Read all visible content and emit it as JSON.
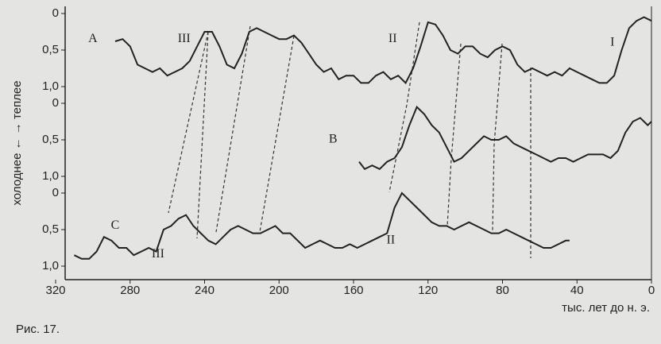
{
  "chart_data": [
    {
      "type": "line",
      "color": "#222",
      "x": [
        288,
        284,
        280,
        276,
        272,
        268,
        264,
        260,
        256,
        252,
        248,
        244,
        240,
        236,
        232,
        228,
        224,
        220,
        216,
        212,
        208,
        204,
        200,
        196,
        192,
        188,
        184,
        180,
        176,
        172,
        168,
        164,
        160,
        156,
        152,
        148,
        144,
        140,
        136,
        132,
        128,
        124,
        120,
        116,
        112,
        108,
        104,
        100,
        96,
        92,
        88,
        84,
        80,
        76,
        72,
        68,
        64,
        60,
        56,
        52,
        48,
        44,
        40,
        36,
        32,
        28,
        24,
        20,
        16,
        12,
        8,
        4,
        0
      ],
      "values": [
        0.38,
        0.35,
        0.45,
        0.7,
        0.75,
        0.8,
        0.75,
        0.85,
        0.8,
        0.75,
        0.65,
        0.45,
        0.25,
        0.25,
        0.45,
        0.7,
        0.75,
        0.55,
        0.25,
        0.2,
        0.25,
        0.3,
        0.35,
        0.35,
        0.3,
        0.4,
        0.55,
        0.7,
        0.8,
        0.75,
        0.9,
        0.85,
        0.85,
        0.95,
        0.95,
        0.85,
        0.8,
        0.9,
        0.85,
        0.95,
        0.75,
        0.45,
        0.12,
        0.15,
        0.3,
        0.5,
        0.55,
        0.45,
        0.45,
        0.55,
        0.6,
        0.5,
        0.45,
        0.5,
        0.7,
        0.8,
        0.75,
        0.8,
        0.85,
        0.8,
        0.85,
        0.75,
        0.8,
        0.85,
        0.9,
        0.95,
        0.95,
        0.85,
        0.5,
        0.2,
        0.1,
        0.05,
        0.1
      ],
      "xlim": [
        320,
        0
      ],
      "ylim": [
        0,
        1
      ],
      "yticks": [
        0,
        {
          "value": 0.5,
          "label": "0,5"
        },
        {
          "value": 1,
          "label": "1,0"
        }
      ],
      "annotations": [
        {
          "text": "A",
          "x": 300,
          "y": 0.35
        },
        {
          "text": "III",
          "x": 251,
          "y": 0.35
        },
        {
          "text": "II",
          "x": 139,
          "y": 0.35
        },
        {
          "text": "I",
          "x": 21,
          "y": 0.4
        }
      ]
    },
    {
      "type": "line",
      "color": "#222",
      "ylabel": "холоднее ←   → теплее",
      "x": [
        157,
        154,
        150,
        146,
        142,
        138,
        134,
        130,
        126,
        122,
        118,
        114,
        110,
        106,
        102,
        98,
        94,
        90,
        86,
        82,
        78,
        74,
        70,
        66,
        62,
        58,
        54,
        50,
        46,
        42,
        38,
        34,
        30,
        26,
        22,
        18,
        14,
        10,
        6,
        2,
        0
      ],
      "values": [
        0.8,
        0.9,
        0.85,
        0.9,
        0.8,
        0.75,
        0.6,
        0.3,
        0.05,
        0.15,
        0.3,
        0.4,
        0.6,
        0.8,
        0.75,
        0.65,
        0.55,
        0.45,
        0.5,
        0.5,
        0.45,
        0.55,
        0.6,
        0.65,
        0.7,
        0.75,
        0.8,
        0.75,
        0.75,
        0.8,
        0.75,
        0.7,
        0.7,
        0.7,
        0.75,
        0.65,
        0.4,
        0.25,
        0.2,
        0.3,
        0.25
      ],
      "xlim": [
        320,
        0
      ],
      "ylim": [
        0,
        1
      ],
      "yticks": [
        0,
        {
          "value": 0.5,
          "label": "0,5"
        },
        {
          "value": 1,
          "label": "1,0"
        }
      ],
      "annotations": [
        {
          "text": "B",
          "x": 171,
          "y": 0.5
        }
      ]
    },
    {
      "type": "line",
      "color": "#222",
      "xlabel": "тыс. лет до н. э.",
      "x": [
        310,
        306,
        302,
        298,
        294,
        290,
        286,
        282,
        278,
        274,
        270,
        266,
        262,
        258,
        254,
        250,
        246,
        242,
        238,
        234,
        230,
        226,
        222,
        218,
        214,
        210,
        206,
        202,
        198,
        194,
        190,
        186,
        182,
        178,
        174,
        170,
        166,
        162,
        158,
        154,
        150,
        146,
        142,
        138,
        134,
        130,
        126,
        122,
        118,
        114,
        110,
        106,
        102,
        98,
        94,
        90,
        86,
        82,
        78,
        74,
        70,
        66,
        62,
        58,
        54,
        50,
        46,
        44
      ],
      "values": [
        0.85,
        0.9,
        0.9,
        0.8,
        0.6,
        0.65,
        0.75,
        0.75,
        0.85,
        0.8,
        0.75,
        0.8,
        0.5,
        0.45,
        0.35,
        0.3,
        0.45,
        0.55,
        0.65,
        0.7,
        0.6,
        0.5,
        0.45,
        0.5,
        0.55,
        0.55,
        0.5,
        0.45,
        0.55,
        0.55,
        0.65,
        0.75,
        0.7,
        0.65,
        0.7,
        0.75,
        0.75,
        0.7,
        0.75,
        0.7,
        0.65,
        0.6,
        0.55,
        0.2,
        0.0,
        0.1,
        0.2,
        0.3,
        0.4,
        0.45,
        0.45,
        0.5,
        0.45,
        0.4,
        0.45,
        0.5,
        0.55,
        0.55,
        0.5,
        0.55,
        0.6,
        0.65,
        0.7,
        0.75,
        0.75,
        0.7,
        0.65,
        0.65
      ],
      "xlim": [
        320,
        0
      ],
      "ylim": [
        0,
        1
      ],
      "yticks": [
        0,
        {
          "value": 0.5,
          "label": "0,5"
        },
        {
          "value": 1,
          "label": "1,0"
        }
      ],
      "xticks": [
        320,
        280,
        240,
        200,
        160,
        120,
        80,
        40,
        0
      ],
      "annotations": [
        {
          "text": "C",
          "x": 288,
          "y": 0.45
        },
        {
          "text": "III",
          "x": 265,
          "y": 0.84
        },
        {
          "text": "II",
          "x": 140,
          "y": 0.65
        }
      ]
    }
  ],
  "caption": "Рис. 17."
}
